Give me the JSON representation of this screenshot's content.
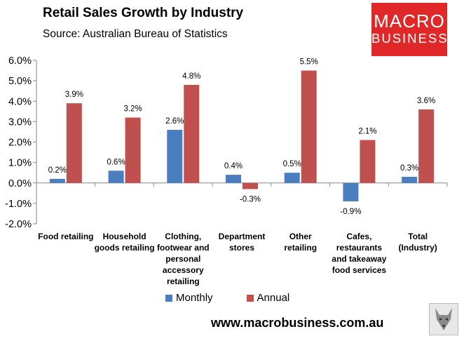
{
  "header": {
    "title": "Retail Sales Growth by Industry",
    "subtitle": "Source: Australian Bureau of Statistics"
  },
  "logo": {
    "line1": "MACRO",
    "line2": "BUSINESS"
  },
  "footer": {
    "website": "www.macrobusiness.com.au"
  },
  "colors": {
    "monthly": "#4a7ebf",
    "annual": "#c0504d",
    "logo_bg": "#e02828"
  },
  "chart_data": {
    "type": "bar",
    "title": "Retail Sales Growth by Industry",
    "categories": [
      [
        "Food retailing"
      ],
      [
        "Household",
        "goods retailing"
      ],
      [
        "Clothing,",
        "footwear and",
        "personal",
        "accessory",
        "retailing"
      ],
      [
        "Department",
        "stores"
      ],
      [
        "Other",
        "retailing"
      ],
      [
        "Cafes,",
        "restaurants",
        "and takeaway",
        "food services"
      ],
      [
        "Total",
        "(Industry)"
      ]
    ],
    "series": [
      {
        "name": "Monthly",
        "values": [
          0.2,
          0.6,
          2.6,
          0.4,
          0.5,
          -0.9,
          0.3
        ],
        "labels": [
          "0.2%",
          "0.6%",
          "2.6%",
          "0.4%",
          "0.5%",
          "-0.9%",
          "0.3%"
        ]
      },
      {
        "name": "Annual",
        "values": [
          3.9,
          3.2,
          4.8,
          -0.3,
          5.5,
          2.1,
          3.6
        ],
        "labels": [
          "3.9%",
          "3.2%",
          "4.8%",
          "-0.3%",
          "5.5%",
          "2.1%",
          "3.6%"
        ]
      }
    ],
    "ylim": [
      -2.0,
      6.0
    ],
    "yticks": [
      -2.0,
      -1.0,
      0.0,
      1.0,
      2.0,
      3.0,
      4.0,
      5.0,
      6.0
    ],
    "ytick_labels": [
      "-2.0%",
      "-1.0%",
      "0.0%",
      "1.0%",
      "2.0%",
      "3.0%",
      "4.0%",
      "5.0%",
      "6.0%"
    ],
    "xlabel": "",
    "ylabel": "",
    "legend_position": "bottom"
  }
}
